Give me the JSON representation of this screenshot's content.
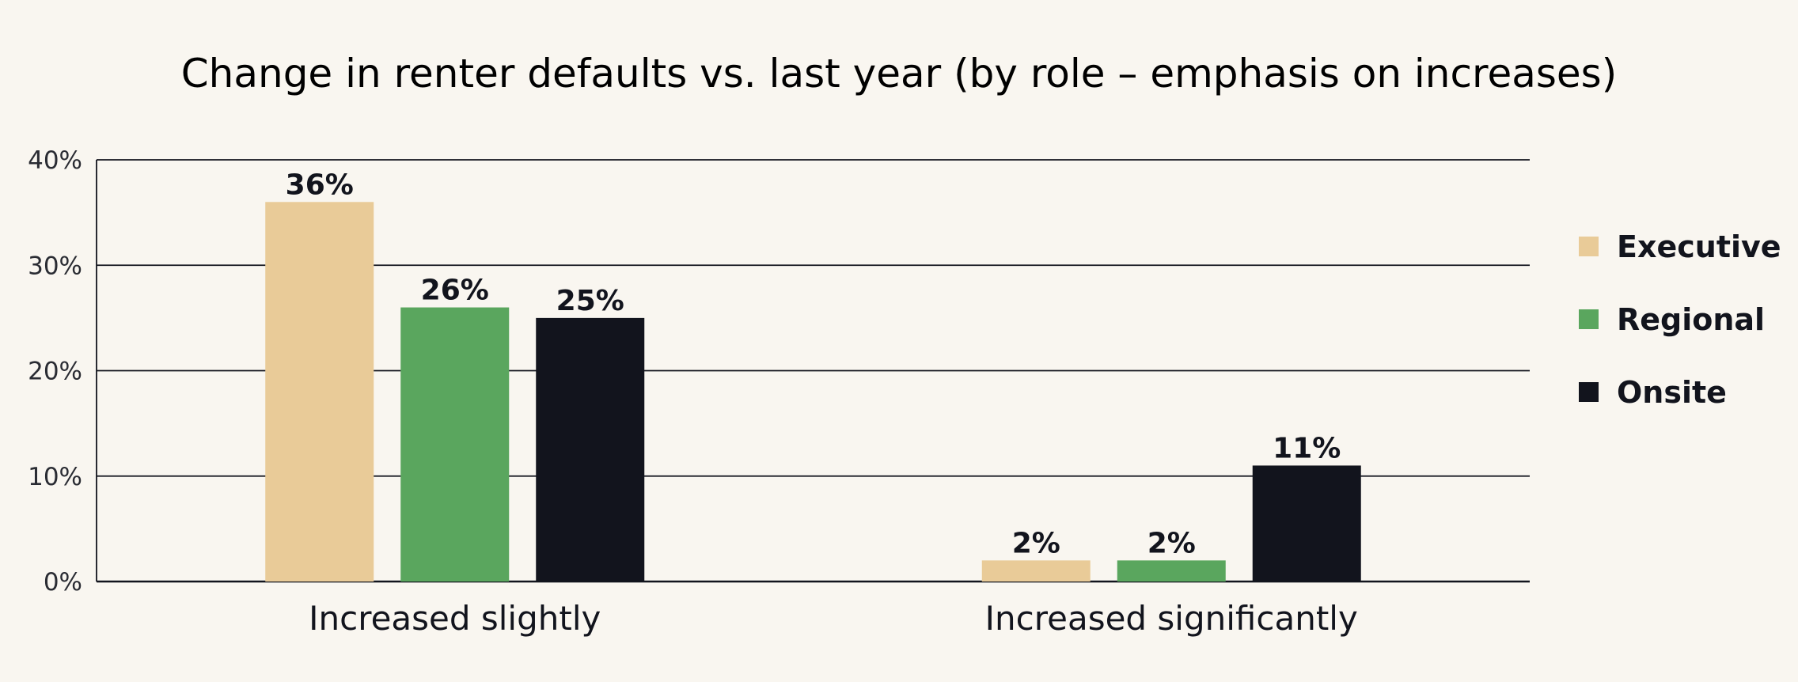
{
  "chart_data": {
    "type": "bar",
    "title": "Change in renter defaults vs. last year (by role – emphasis on increases)",
    "xlabel": "",
    "ylabel": "",
    "categories": [
      "Increased slightly",
      "Increased significantly"
    ],
    "series": [
      {
        "name": "Executive",
        "color": "#e9cb98",
        "values": [
          36,
          2
        ],
        "labels": [
          "36%",
          "2%"
        ]
      },
      {
        "name": "Regional",
        "color": "#5aa65e",
        "values": [
          26,
          2
        ],
        "labels": [
          "26%",
          "2%"
        ]
      },
      {
        "name": "Onsite",
        "color": "#12141d",
        "values": [
          25,
          11
        ],
        "labels": [
          "25%",
          "11%"
        ]
      }
    ],
    "ylim": [
      0,
      40
    ],
    "yticks": [
      0,
      10,
      20,
      30,
      40
    ],
    "ytick_labels": [
      "0%",
      "10%",
      "20%",
      "30%",
      "40%"
    ],
    "grid": true,
    "legend_position": "right"
  }
}
